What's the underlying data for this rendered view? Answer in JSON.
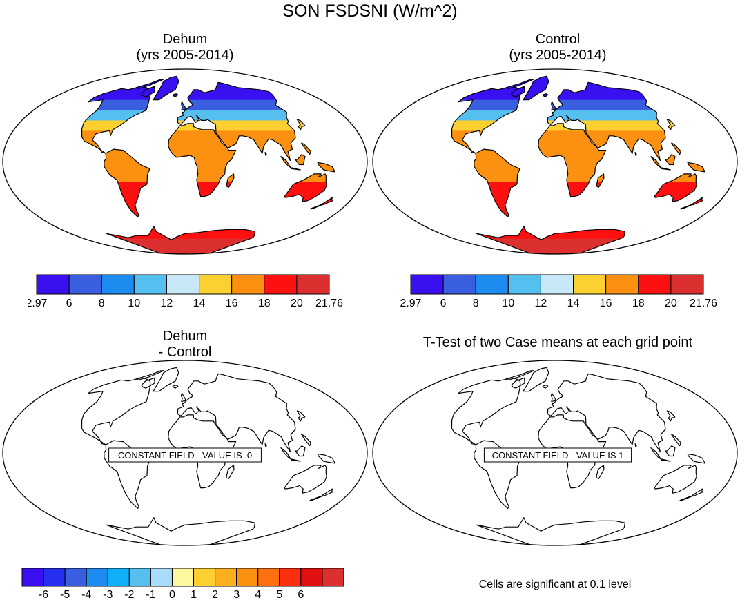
{
  "figure": {
    "title": "SON FSDSNI (W/m^2)",
    "panel_dehum": {
      "title": "Dehum",
      "subtitle": "(yrs 2005-2014)"
    },
    "panel_control": {
      "title": "Control",
      "subtitle": "(yrs 2005-2014)"
    },
    "panel_diff": {
      "title": "Dehum",
      "subtitle": "- Control",
      "annotation": "CONSTANT FIELD - VALUE IS .0"
    },
    "panel_ttest": {
      "title": "T-Test of two Case means at each grid point",
      "annotation": "CONSTANT FIELD - VALUE IS 1"
    },
    "significance_note": "Cells are significant at 0.1 level"
  },
  "chart_data": [
    {
      "type": "heatmap",
      "title": "Dehum (yrs 2005-2014)",
      "units": "W/m^2",
      "season": "SON",
      "colorbar": {
        "tick_labels": [
          "2.97",
          "6",
          "8",
          "10",
          "12",
          "14",
          "16",
          "18",
          "20",
          "21.76"
        ],
        "colors": [
          "#3b10f0",
          "#3a5ee0",
          "#1c8cf0",
          "#55c0f0",
          "#c8e8f8",
          "#fcd030",
          "#fc9010",
          "#fc1010",
          "#dc3030"
        ]
      },
      "lat_bands": [
        {
          "lat": 70,
          "value": 4
        },
        {
          "lat": 60,
          "value": 7
        },
        {
          "lat": 50,
          "value": 11
        },
        {
          "lat": 40,
          "value": 14
        },
        {
          "lat": 30,
          "value": 16
        },
        {
          "lat": 10,
          "value": 17
        },
        {
          "lat": -20,
          "value": 19
        },
        {
          "lat": -75,
          "value": 21
        }
      ]
    },
    {
      "type": "heatmap",
      "title": "Control (yrs 2005-2014)",
      "units": "W/m^2",
      "season": "SON",
      "colorbar": {
        "tick_labels": [
          "2.97",
          "6",
          "8",
          "10",
          "12",
          "14",
          "16",
          "18",
          "20",
          "21.76"
        ],
        "colors": [
          "#3b10f0",
          "#3a5ee0",
          "#1c8cf0",
          "#55c0f0",
          "#c8e8f8",
          "#fcd030",
          "#fc9010",
          "#fc1010",
          "#dc3030"
        ]
      },
      "lat_bands": [
        {
          "lat": 70,
          "value": 4
        },
        {
          "lat": 60,
          "value": 7
        },
        {
          "lat": 50,
          "value": 11
        },
        {
          "lat": 40,
          "value": 14
        },
        {
          "lat": 30,
          "value": 16
        },
        {
          "lat": 10,
          "value": 17
        },
        {
          "lat": -20,
          "value": 19
        },
        {
          "lat": -75,
          "value": 21
        }
      ]
    },
    {
      "type": "heatmap",
      "title": "Dehum - Control",
      "constant_value": 0,
      "colorbar": {
        "tick_labels": [
          "-6",
          "-5",
          "-4",
          "-3",
          "-2",
          "-1",
          "0",
          "1",
          "2",
          "3",
          "4",
          "5",
          "6"
        ],
        "colors": [
          "#3b10f0",
          "#2830f0",
          "#3a5ee0",
          "#1c8cf0",
          "#10b0f8",
          "#55c0f0",
          "#a8dcf8",
          "#fcf8a0",
          "#fcd030",
          "#fcb020",
          "#fc9010",
          "#fc7010",
          "#fc3010",
          "#e01010",
          "#dc3030"
        ]
      }
    },
    {
      "type": "heatmap",
      "title": "T-Test of two Case means at each grid point",
      "constant_value": 1,
      "significance_level": 0.1
    }
  ]
}
